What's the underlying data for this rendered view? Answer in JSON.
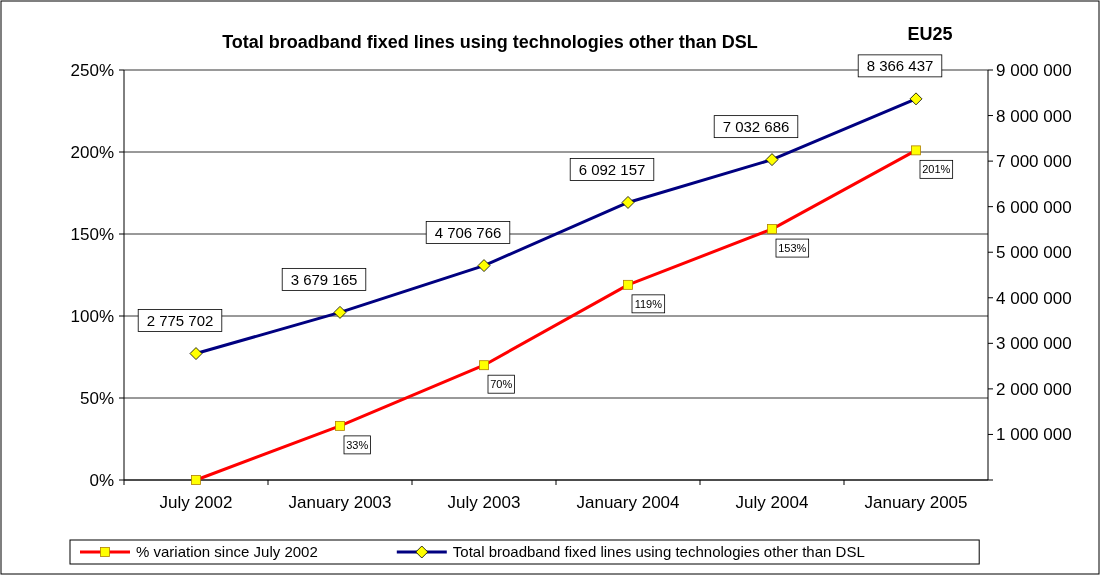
{
  "chart_data": {
    "type": "line",
    "title": "Total broadband fixed lines using technologies other than DSL",
    "annotations": [
      "EU25"
    ],
    "categories": [
      "July 2002",
      "January 2003",
      "July 2003",
      "January 2004",
      "July 2004",
      "January 2005"
    ],
    "series": [
      {
        "name": "% variation since July 2002",
        "color": "#ff0000",
        "marker": "square",
        "values": [
          0,
          33,
          70,
          119,
          153,
          201
        ],
        "value_labels": [
          null,
          "33%",
          "70%",
          "119%",
          "153%",
          "201%"
        ]
      },
      {
        "name": "Total broadband fixed lines using technologies other than DSL",
        "color": "#000080",
        "marker": "diamond",
        "axis": "y2",
        "values": [
          2775702,
          3679165,
          4706766,
          6092157,
          7032686,
          8366437
        ],
        "value_labels": [
          "2 775 702",
          "3 679 165",
          "4 706 766",
          "6 092 157",
          "7 032 686",
          "8 366 437"
        ]
      }
    ],
    "ylim": [
      0,
      250
    ],
    "yticks": [
      {
        "value": 0,
        "label": "0%"
      },
      {
        "value": 50,
        "label": "50%"
      },
      {
        "value": 100,
        "label": "100%"
      },
      {
        "value": 150,
        "label": "150%"
      },
      {
        "value": 200,
        "label": "200%"
      },
      {
        "value": 250,
        "label": "250%"
      }
    ],
    "y2lim": [
      0,
      9000000
    ],
    "y2ticks": [
      {
        "value": 0,
        "label": null
      },
      {
        "value": 1000000,
        "label": "1 000 000"
      },
      {
        "value": 2000000,
        "label": "2 000 000"
      },
      {
        "value": 3000000,
        "label": "3 000 000"
      },
      {
        "value": 4000000,
        "label": "4 000 000"
      },
      {
        "value": 5000000,
        "label": "5 000 000"
      },
      {
        "value": 6000000,
        "label": "6 000 000"
      },
      {
        "value": 7000000,
        "label": "7 000 000"
      },
      {
        "value": 8000000,
        "label": "8 000 000"
      },
      {
        "value": 9000000,
        "label": "9 000 000"
      }
    ],
    "grid": "y",
    "legend": "bottom"
  }
}
